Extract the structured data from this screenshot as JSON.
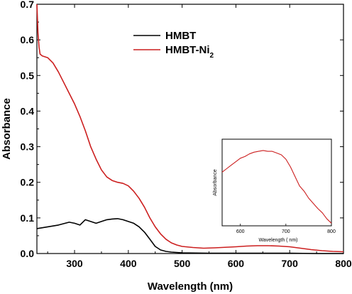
{
  "chart_data": [
    {
      "type": "line",
      "title": "",
      "xlabel": "Wavelength (nm)",
      "ylabel": "Absorbance",
      "xlim": [
        230,
        800
      ],
      "ylim": [
        0.0,
        0.7
      ],
      "xticks": [
        "300",
        "400",
        "500",
        "600",
        "700",
        "800"
      ],
      "yticks": [
        "0.0",
        "0.1",
        "0.2",
        "0.3",
        "0.4",
        "0.5",
        "0.6",
        "0.7"
      ],
      "legend_position": "top-center",
      "series": [
        {
          "name": "HMBT",
          "color": "#000000",
          "x": [
            230,
            250,
            270,
            290,
            300,
            310,
            320,
            330,
            340,
            350,
            360,
            370,
            380,
            390,
            400,
            410,
            420,
            430,
            440,
            450,
            460,
            470,
            480,
            500,
            550,
            600,
            650,
            700,
            750,
            800
          ],
          "y": [
            0.07,
            0.075,
            0.08,
            0.088,
            0.085,
            0.08,
            0.095,
            0.09,
            0.085,
            0.09,
            0.095,
            0.097,
            0.098,
            0.095,
            0.09,
            0.085,
            0.075,
            0.06,
            0.04,
            0.02,
            0.01,
            0.006,
            0.004,
            0.002,
            0.001,
            0.001,
            0.001,
            0.001,
            0.0,
            0.0
          ]
        },
        {
          "name": "HMBT-Ni",
          "color": "#cc1f1f",
          "x": [
            230,
            232,
            234,
            236,
            240,
            250,
            260,
            270,
            280,
            290,
            300,
            310,
            320,
            330,
            340,
            350,
            360,
            370,
            380,
            390,
            400,
            410,
            420,
            430,
            440,
            450,
            460,
            470,
            480,
            490,
            500,
            520,
            540,
            560,
            600,
            620,
            640,
            660,
            680,
            700,
            720,
            740,
            760,
            780,
            800
          ],
          "y": [
            0.7,
            0.62,
            0.58,
            0.56,
            0.555,
            0.55,
            0.535,
            0.51,
            0.48,
            0.45,
            0.42,
            0.385,
            0.345,
            0.3,
            0.265,
            0.235,
            0.215,
            0.205,
            0.2,
            0.197,
            0.19,
            0.175,
            0.155,
            0.13,
            0.1,
            0.075,
            0.055,
            0.04,
            0.03,
            0.024,
            0.02,
            0.017,
            0.015,
            0.016,
            0.019,
            0.021,
            0.022,
            0.022,
            0.021,
            0.019,
            0.015,
            0.011,
            0.008,
            0.006,
            0.005
          ]
        }
      ]
    },
    {
      "type": "line",
      "title": "",
      "xlabel": "Wavelength ( nm)",
      "ylabel": "Absorbance",
      "xlim": [
        560,
        800
      ],
      "ylim": [
        0.0,
        1.0
      ],
      "xticks": [
        "600",
        "700",
        "800"
      ],
      "series": [
        {
          "color": "#cc1f1f",
          "x": [
            560,
            570,
            580,
            590,
            600,
            610,
            620,
            630,
            640,
            650,
            660,
            670,
            680,
            690,
            700,
            710,
            720,
            730,
            740,
            750,
            760,
            770,
            780,
            790,
            800
          ],
          "y": [
            0.62,
            0.66,
            0.7,
            0.74,
            0.78,
            0.8,
            0.83,
            0.85,
            0.86,
            0.87,
            0.86,
            0.86,
            0.84,
            0.82,
            0.77,
            0.68,
            0.57,
            0.46,
            0.4,
            0.32,
            0.26,
            0.2,
            0.15,
            0.08,
            0.03
          ]
        }
      ]
    }
  ]
}
